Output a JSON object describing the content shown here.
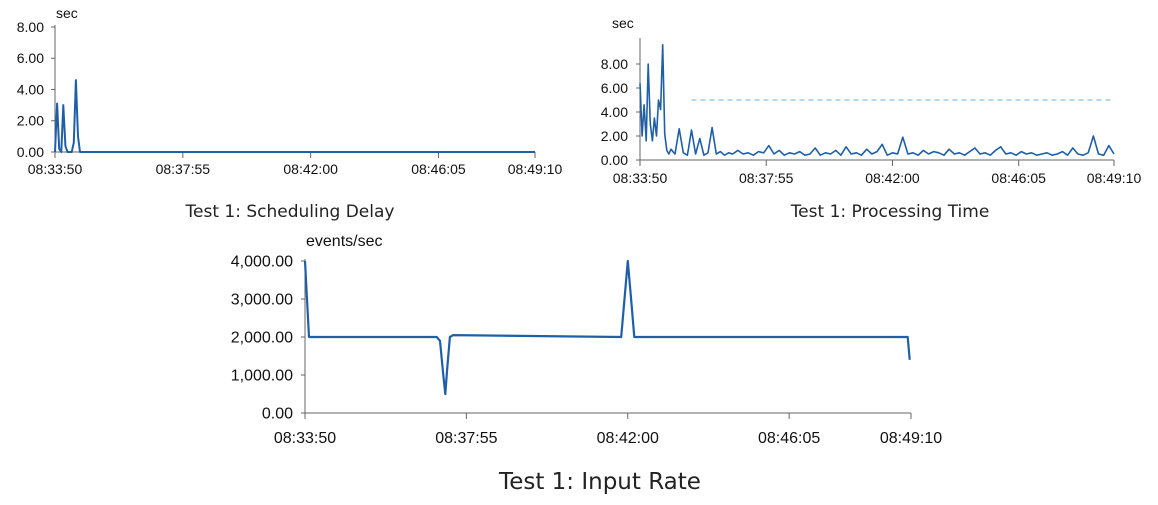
{
  "chart_data": [
    {
      "type": "line",
      "caption": "Test 1: Scheduling Delay",
      "unit": "sec",
      "ylim": [
        0,
        8
      ],
      "y_ticks": [
        "0.00",
        "2.00",
        "4.00",
        "6.00",
        "8.00"
      ],
      "x_ticks": [
        "08:33:50",
        "08:37:55",
        "08:42:00",
        "08:46:05",
        "08:49:10"
      ],
      "x_tick_seconds": [
        0,
        245,
        490,
        735,
        920
      ],
      "grid": false,
      "series": [
        {
          "color": "#1f5fa8",
          "x": [
            0,
            4,
            8,
            12,
            16,
            20,
            24,
            28,
            32,
            36,
            40,
            44,
            48,
            60,
            120,
            300,
            500,
            700,
            920
          ],
          "y": [
            0,
            3.1,
            0.2,
            0,
            3.0,
            0.4,
            0,
            0,
            0,
            0.6,
            4.6,
            1.0,
            0,
            0,
            0,
            0,
            0,
            0,
            0
          ]
        }
      ]
    },
    {
      "type": "line",
      "caption": "Test 1: Processing Time",
      "unit": "sec",
      "ylim": [
        0,
        10
      ],
      "y_ticks": [
        "0.00",
        "2.00",
        "4.00",
        "6.00",
        "8.00"
      ],
      "x_ticks": [
        "08:33:50",
        "08:37:55",
        "08:42:00",
        "08:46:05",
        "08:49:10"
      ],
      "x_tick_seconds": [
        0,
        245,
        490,
        735,
        920
      ],
      "grid": false,
      "reference_line": {
        "y": 5.0,
        "color": "#7fc4e8",
        "style": "dashed"
      },
      "series": [
        {
          "color": "#1f5fa8",
          "x": [
            0,
            4,
            8,
            12,
            16,
            20,
            24,
            28,
            32,
            36,
            40,
            44,
            48,
            52,
            56,
            60,
            68,
            76,
            84,
            92,
            100,
            108,
            116,
            124,
            132,
            140,
            148,
            156,
            164,
            172,
            180,
            190,
            200,
            210,
            220,
            230,
            240,
            250,
            260,
            270,
            280,
            290,
            300,
            310,
            320,
            330,
            340,
            350,
            360,
            370,
            380,
            390,
            400,
            410,
            420,
            430,
            440,
            450,
            460,
            470,
            480,
            490,
            500,
            510,
            520,
            530,
            540,
            550,
            560,
            570,
            580,
            590,
            600,
            610,
            620,
            630,
            640,
            650,
            660,
            670,
            680,
            690,
            700,
            710,
            720,
            730,
            740,
            750,
            760,
            770,
            780,
            790,
            800,
            810,
            820,
            830,
            840,
            850,
            860,
            870,
            880,
            890,
            900,
            910,
            920
          ],
          "y": [
            6.4,
            2.0,
            4.6,
            1.6,
            8.0,
            3.0,
            1.6,
            3.5,
            2.0,
            5.0,
            4.2,
            9.6,
            2.2,
            0.8,
            0.5,
            0.9,
            0.5,
            2.6,
            0.6,
            0.4,
            2.5,
            0.5,
            1.8,
            0.4,
            0.6,
            2.7,
            0.5,
            0.7,
            0.4,
            0.6,
            0.5,
            0.8,
            0.5,
            0.6,
            0.4,
            0.7,
            0.6,
            1.2,
            0.5,
            0.8,
            0.4,
            0.6,
            0.5,
            0.7,
            0.4,
            0.5,
            1.0,
            0.4,
            0.6,
            0.5,
            0.8,
            0.4,
            1.1,
            0.5,
            0.6,
            0.4,
            0.9,
            0.5,
            0.7,
            1.3,
            0.4,
            0.6,
            0.5,
            1.9,
            0.5,
            0.6,
            0.4,
            0.8,
            0.5,
            0.7,
            0.6,
            0.4,
            0.9,
            0.5,
            0.6,
            0.4,
            0.7,
            1.0,
            0.5,
            0.6,
            0.4,
            0.8,
            1.1,
            0.5,
            0.6,
            0.4,
            0.7,
            0.5,
            0.6,
            0.4,
            0.5,
            0.6,
            0.4,
            0.5,
            0.7,
            0.4,
            1.0,
            0.5,
            0.4,
            0.6,
            2.0,
            0.5,
            0.4,
            1.2,
            0.5
          ]
        }
      ]
    },
    {
      "type": "line",
      "caption": "Test 1: Input Rate",
      "unit": "events/sec",
      "ylim": [
        0,
        4000
      ],
      "y_ticks": [
        "0.00",
        "1,000.00",
        "2,000.00",
        "3,000.00",
        "4,000.00"
      ],
      "x_ticks": [
        "08:33:50",
        "08:37:55",
        "08:42:00",
        "08:46:05",
        "08:49:10"
      ],
      "x_tick_seconds": [
        0,
        245,
        490,
        735,
        920
      ],
      "grid": false,
      "series": [
        {
          "color": "#1f5fa8",
          "x": [
            0,
            3,
            6,
            200,
            205,
            210,
            213,
            216,
            220,
            225,
            480,
            485,
            490,
            495,
            500,
            900,
            915,
            918
          ],
          "y": [
            4000,
            3000,
            2000,
            2000,
            1900,
            1000,
            500,
            1200,
            2000,
            2050,
            2000,
            3000,
            4000,
            3000,
            2000,
            2000,
            2000,
            1400
          ]
        }
      ]
    }
  ]
}
